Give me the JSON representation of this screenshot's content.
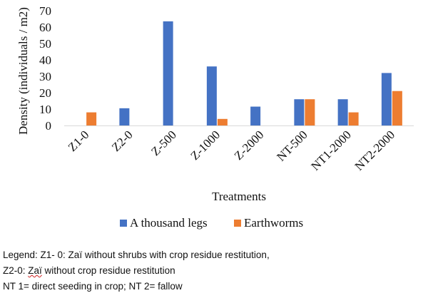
{
  "chart_data": {
    "type": "bar",
    "categories": [
      "Z1-0",
      "Z2-0",
      "Z-500",
      "Z-1000",
      "Z-2000",
      "NT-500",
      "NT1-2000",
      "NT2-2000"
    ],
    "series": [
      {
        "name": "A thousand legs",
        "values": [
          0,
          10.5,
          63.5,
          36,
          11.5,
          16,
          16,
          32
        ],
        "color": "#4472C4"
      },
      {
        "name": "Earthworms",
        "values": [
          8,
          0,
          0,
          4,
          0,
          16,
          8,
          21
        ],
        "color": "#ED7D31"
      }
    ],
    "xlabel": "Treatments",
    "ylabel": "Density (individuals / m2)",
    "ylim": [
      0,
      70
    ],
    "yticks": [
      0,
      10,
      20,
      30,
      40,
      50,
      60,
      70
    ],
    "grid": false,
    "legend_position": "bottom"
  },
  "notes": {
    "line1": "Legend: Z1- 0: Zaï without shrubs with crop residue restitution,",
    "line2_a": "Z2-0: ",
    "line2_b": "Zaï",
    "line2_c": " without crop residue restitution",
    "line3": "NT 1= direct seeding in crop; NT 2= fallow"
  }
}
